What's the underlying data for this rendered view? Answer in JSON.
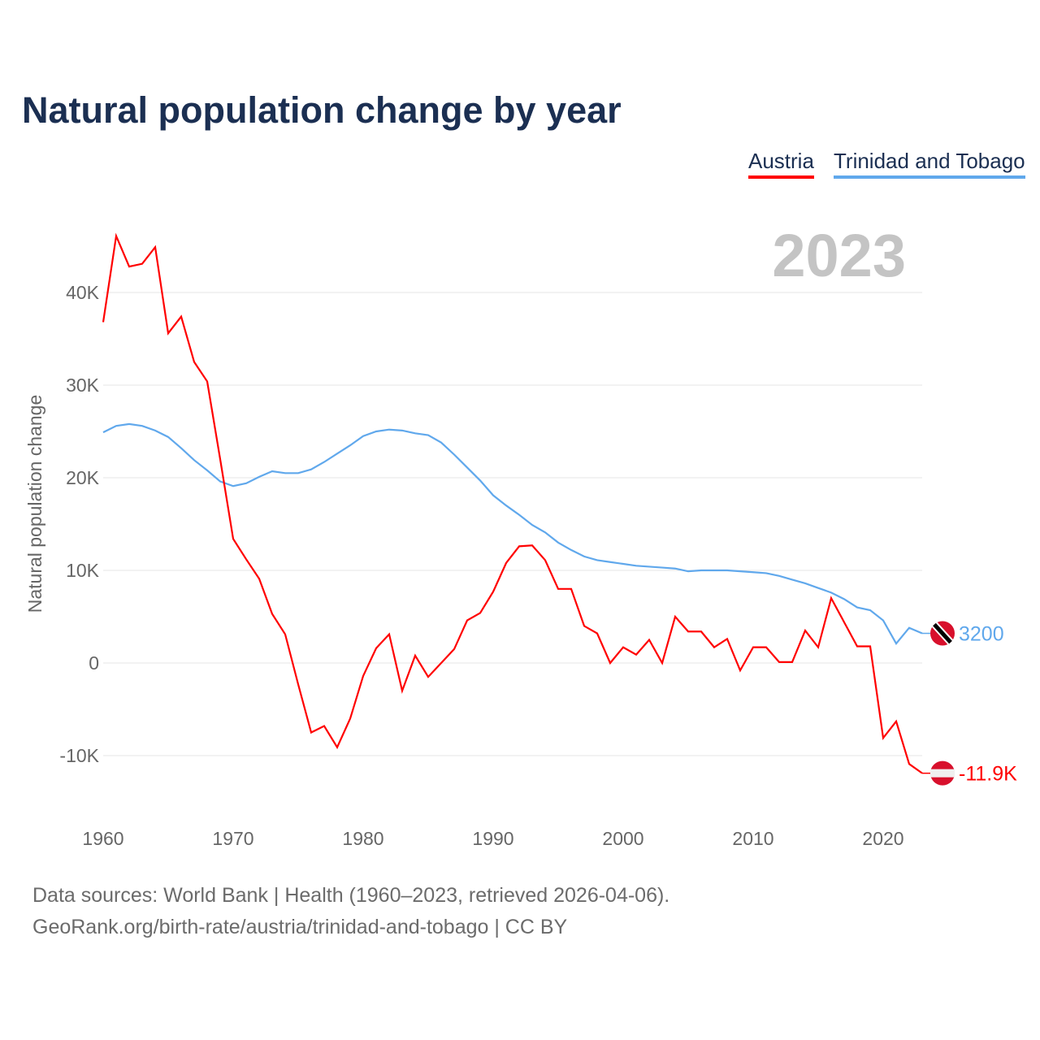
{
  "title": "Natural population change by year",
  "footer": {
    "line1": "Data sources: World Bank | Health (1960–2023, retrieved 2026-04-06).",
    "line2": "GeoRank.org/birth-rate/austria/trinidad-and-tobago | CC BY"
  },
  "chart_data": {
    "type": "line",
    "title": "Natural population change by year",
    "xlabel": "",
    "ylabel": "Natural population change",
    "year_watermark": "2023",
    "xlim": [
      1960,
      2023
    ],
    "ylim": [
      -15000,
      47000
    ],
    "x_ticks": [
      1960,
      1970,
      1980,
      1990,
      2000,
      2010,
      2020
    ],
    "x_tick_labels": [
      "1960",
      "1970",
      "1980",
      "1990",
      "2000",
      "2010",
      "2020"
    ],
    "y_ticks": [
      -10000,
      0,
      10000,
      20000,
      30000,
      40000
    ],
    "y_tick_labels": [
      "-10K",
      "0",
      "10K",
      "20K",
      "30K",
      "40K"
    ],
    "grid": true,
    "legend_position": "top-right",
    "x": [
      1960,
      1961,
      1962,
      1963,
      1964,
      1965,
      1966,
      1967,
      1968,
      1969,
      1970,
      1971,
      1972,
      1973,
      1974,
      1975,
      1976,
      1977,
      1978,
      1979,
      1980,
      1981,
      1982,
      1983,
      1984,
      1985,
      1986,
      1987,
      1988,
      1989,
      1990,
      1991,
      1992,
      1993,
      1994,
      1995,
      1996,
      1997,
      1998,
      1999,
      2000,
      2001,
      2002,
      2003,
      2004,
      2005,
      2006,
      2007,
      2008,
      2009,
      2010,
      2011,
      2012,
      2013,
      2014,
      2015,
      2016,
      2017,
      2018,
      2019,
      2020,
      2021,
      2022,
      2023
    ],
    "series": [
      {
        "name": "Austria",
        "color": "#ff0000",
        "end_label": "-11.9K",
        "values": [
          36800,
          46100,
          42800,
          43100,
          44900,
          35600,
          37400,
          32500,
          30400,
          22000,
          13400,
          11200,
          9100,
          5300,
          3100,
          -2300,
          -7500,
          -6800,
          -9100,
          -6000,
          -1400,
          1600,
          3100,
          -3000,
          800,
          -1500,
          0,
          1500,
          4600,
          5400,
          7700,
          10800,
          12600,
          12700,
          11100,
          8000,
          8000,
          4000,
          3200,
          0,
          1700,
          900,
          2500,
          0,
          5000,
          3400,
          3400,
          1700,
          2600,
          -800,
          1700,
          1700,
          100,
          100,
          3500,
          1700,
          7000,
          4400,
          1800,
          1800,
          -8100,
          -6300,
          -10900,
          -11900
        ]
      },
      {
        "name": "Trinidad and Tobago",
        "color": "#60a8ec",
        "end_label": "3200",
        "values": [
          24900,
          25600,
          25800,
          25600,
          25100,
          24400,
          23200,
          21900,
          20800,
          19600,
          19100,
          19400,
          20100,
          20700,
          20500,
          20500,
          20900,
          21700,
          22600,
          23500,
          24500,
          25000,
          25200,
          25100,
          24800,
          24600,
          23800,
          22500,
          21100,
          19700,
          18100,
          17000,
          16000,
          14900,
          14100,
          13000,
          12200,
          11500,
          11100,
          10900,
          10700,
          10500,
          10400,
          10300,
          10200,
          9900,
          10000,
          10000,
          10000,
          9900,
          9800,
          9700,
          9400,
          9000,
          8600,
          8100,
          7600,
          6900,
          6000,
          5700,
          4600,
          2100,
          3800,
          3200
        ]
      }
    ]
  }
}
